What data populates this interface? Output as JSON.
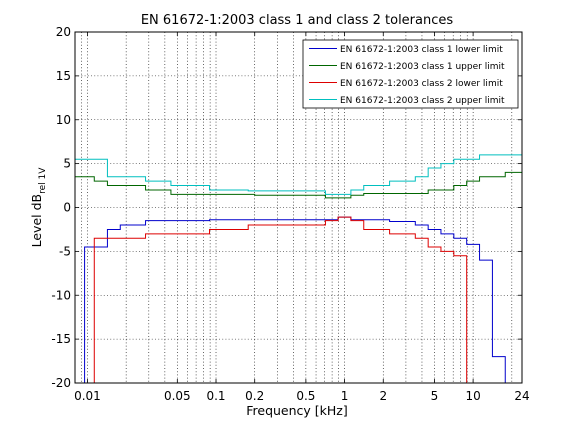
{
  "chart_data": {
    "type": "line",
    "title": "EN 61672-1:2003 class 1 and class 2 tolerances",
    "xlabel": "Frequency [kHz]",
    "ylabel_main": "Level dB",
    "ylabel_sub": "rel 1V",
    "x_scale": "log",
    "xlim": [
      0.008,
      24
    ],
    "ylim": [
      -20,
      20
    ],
    "x_ticks": [
      0.01,
      0.05,
      0.1,
      0.2,
      0.5,
      1,
      2,
      5,
      10,
      24
    ],
    "x_tick_labels": [
      "0.01",
      "0.05",
      "0.1",
      "0.2",
      "0.5",
      "1",
      "2",
      "5",
      "10",
      "24"
    ],
    "y_ticks": [
      -20,
      -15,
      -10,
      -5,
      0,
      5,
      10,
      15,
      20
    ],
    "y_tick_labels": [
      "-20",
      "-15",
      "-10",
      "-5",
      "0",
      "5",
      "10",
      "15",
      "20"
    ],
    "grid": true,
    "legend_position": "top-right",
    "colors": {
      "class1_lower": "#0000cc",
      "class1_upper": "#006600",
      "class2_lower": "#dd0000",
      "class2_upper": "#00bfbf"
    },
    "series": [
      {
        "name": "EN 61672-1:2003 class 1 lower limit",
        "color_key": "class1_lower",
        "points": [
          [
            0.0095,
            -20
          ],
          [
            0.0095,
            -4.5
          ],
          [
            0.0143,
            -4.5
          ],
          [
            0.0143,
            -2.5
          ],
          [
            0.018,
            -2.5
          ],
          [
            0.018,
            -2.0
          ],
          [
            0.0283,
            -2.0
          ],
          [
            0.0283,
            -1.5
          ],
          [
            0.0565,
            -1.5
          ],
          [
            0.0565,
            -1.5
          ],
          [
            0.089,
            -1.5
          ],
          [
            0.089,
            -1.4
          ],
          [
            0.4,
            -1.4
          ],
          [
            0.4,
            -1.4
          ],
          [
            0.89,
            -1.4
          ],
          [
            0.89,
            -1.1
          ],
          [
            1.12,
            -1.1
          ],
          [
            1.12,
            -1.4
          ],
          [
            2.24,
            -1.4
          ],
          [
            2.24,
            -1.6
          ],
          [
            3.55,
            -1.6
          ],
          [
            3.55,
            -2.0
          ],
          [
            4.47,
            -2.0
          ],
          [
            4.47,
            -2.5
          ],
          [
            5.62,
            -2.5
          ],
          [
            5.62,
            -3.0
          ],
          [
            7.08,
            -3.0
          ],
          [
            7.08,
            -3.5
          ],
          [
            8.91,
            -3.5
          ],
          [
            8.91,
            -4.2
          ],
          [
            11.22,
            -4.2
          ],
          [
            11.22,
            -6.0
          ],
          [
            14.13,
            -6.0
          ],
          [
            14.13,
            -17.0
          ],
          [
            17.78,
            -17.0
          ],
          [
            17.78,
            -20
          ]
        ]
      },
      {
        "name": "EN 61672-1:2003 class 1 upper limit",
        "color_key": "class1_upper",
        "points": [
          [
            0.008,
            3.5
          ],
          [
            0.0113,
            3.5
          ],
          [
            0.0113,
            3.0
          ],
          [
            0.0143,
            3.0
          ],
          [
            0.0143,
            2.5
          ],
          [
            0.0283,
            2.5
          ],
          [
            0.0283,
            2.0
          ],
          [
            0.0446,
            2.0
          ],
          [
            0.0446,
            1.5
          ],
          [
            0.2,
            1.5
          ],
          [
            0.2,
            1.4
          ],
          [
            0.71,
            1.4
          ],
          [
            0.71,
            1.1
          ],
          [
            1.12,
            1.1
          ],
          [
            1.12,
            1.4
          ],
          [
            1.41,
            1.4
          ],
          [
            1.41,
            1.6
          ],
          [
            4.47,
            1.6
          ],
          [
            4.47,
            2.0
          ],
          [
            7.08,
            2.0
          ],
          [
            7.08,
            2.5
          ],
          [
            8.91,
            2.5
          ],
          [
            8.91,
            3.0
          ],
          [
            11.22,
            3.0
          ],
          [
            11.22,
            3.5
          ],
          [
            17.78,
            3.5
          ],
          [
            17.78,
            4.0
          ],
          [
            24,
            4.0
          ]
        ]
      },
      {
        "name": "EN 61672-1:2003 class 2 lower limit",
        "color_key": "class2_lower",
        "points": [
          [
            0.0113,
            -20
          ],
          [
            0.0113,
            -3.5
          ],
          [
            0.0283,
            -3.5
          ],
          [
            0.0283,
            -3.0
          ],
          [
            0.089,
            -3.0
          ],
          [
            0.089,
            -2.5
          ],
          [
            0.178,
            -2.5
          ],
          [
            0.178,
            -2.0
          ],
          [
            0.71,
            -2.0
          ],
          [
            0.71,
            -1.5
          ],
          [
            0.89,
            -1.5
          ],
          [
            0.89,
            -1.1
          ],
          [
            1.12,
            -1.1
          ],
          [
            1.12,
            -1.5
          ],
          [
            1.41,
            -1.5
          ],
          [
            1.41,
            -2.5
          ],
          [
            2.24,
            -2.5
          ],
          [
            2.24,
            -3.0
          ],
          [
            3.55,
            -3.0
          ],
          [
            3.55,
            -3.5
          ],
          [
            4.47,
            -3.5
          ],
          [
            4.47,
            -4.5
          ],
          [
            5.62,
            -4.5
          ],
          [
            5.62,
            -5.0
          ],
          [
            7.08,
            -5.0
          ],
          [
            7.08,
            -5.5
          ],
          [
            8.91,
            -5.5
          ],
          [
            8.91,
            -20
          ]
        ]
      },
      {
        "name": "EN 61672-1:2003 class 2 upper limit",
        "color_key": "class2_upper",
        "points": [
          [
            0.008,
            5.5
          ],
          [
            0.0143,
            5.5
          ],
          [
            0.0143,
            3.5
          ],
          [
            0.0283,
            3.5
          ],
          [
            0.0283,
            3.0
          ],
          [
            0.0446,
            3.0
          ],
          [
            0.0446,
            2.5
          ],
          [
            0.089,
            2.5
          ],
          [
            0.089,
            2.0
          ],
          [
            0.178,
            2.0
          ],
          [
            0.178,
            1.9
          ],
          [
            0.71,
            1.9
          ],
          [
            0.71,
            1.5
          ],
          [
            1.12,
            1.5
          ],
          [
            1.12,
            2.0
          ],
          [
            1.41,
            2.0
          ],
          [
            1.41,
            2.5
          ],
          [
            2.24,
            2.5
          ],
          [
            2.24,
            3.0
          ],
          [
            3.55,
            3.0
          ],
          [
            3.55,
            3.5
          ],
          [
            4.47,
            3.5
          ],
          [
            4.47,
            4.5
          ],
          [
            5.62,
            4.5
          ],
          [
            5.62,
            5.0
          ],
          [
            7.08,
            5.0
          ],
          [
            7.08,
            5.5
          ],
          [
            11.22,
            5.5
          ],
          [
            11.22,
            6.0
          ],
          [
            24,
            6.0
          ]
        ]
      }
    ]
  }
}
